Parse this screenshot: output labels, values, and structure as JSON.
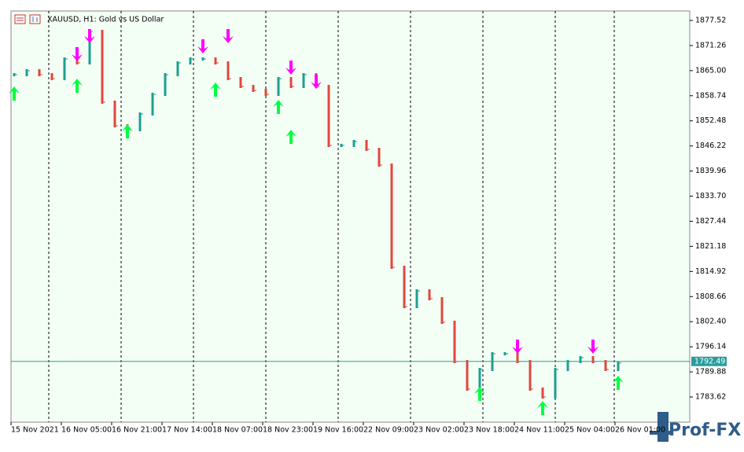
{
  "chart_data": {
    "type": "bars",
    "title": "XAUUSD, H1:  Gold vs US Dollar",
    "watermark": "Prof-FX",
    "series": [
      {
        "values": [
          1863.99,
          1864.97,
          1863.99,
          1863.01,
          1867.91,
          1866.93,
          1874.78,
          1857.13,
          1851.25,
          1850.27,
          1854.19,
          1859.09,
          1863.99,
          1866.93,
          1867.91,
          1867.91,
          1866.93,
          1863.01,
          1861.05,
          1860.07,
          1859.09,
          1863.01,
          1861.05,
          1863.99,
          1861.05,
          1846.35,
          1846.35,
          1847.33,
          1845.37,
          1841.45,
          1815.96,
          1806.16,
          1810.08,
          1808.12,
          1802.24,
          1792.44,
          1785.58,
          1790.48,
          1794.4,
          1794.4,
          1792.44,
          1785.58,
          1783.62,
          1790.48,
          1792.44,
          1793.42,
          1792.44,
          1790.48,
          1792.05
        ]
      }
    ],
    "up_color": "#1f9e8f",
    "down_color": "#e0473f",
    "buy_signals": {
      "color": "#00ff40",
      "values": [
        1861.05,
        null,
        null,
        null,
        null,
        1863.01,
        null,
        null,
        null,
        1851.64,
        null,
        null,
        null,
        null,
        null,
        null,
        1862.03,
        null,
        null,
        null,
        null,
        1857.72,
        1850.27,
        null,
        null,
        null,
        null,
        null,
        null,
        null,
        null,
        null,
        null,
        null,
        null,
        null,
        null,
        1786.17,
        null,
        null,
        null,
        null,
        1782.64,
        null,
        null,
        null,
        null,
        null,
        1788.91
      ]
    },
    "sell_signals": {
      "color": "#ff00ff",
      "values": [
        null,
        null,
        null,
        null,
        null,
        1867.33,
        1871.83,
        null,
        null,
        null,
        null,
        null,
        null,
        null,
        null,
        1869.29,
        null,
        1871.83,
        null,
        null,
        null,
        null,
        1863.99,
        null,
        1860.46,
        null,
        null,
        null,
        null,
        null,
        null,
        null,
        null,
        null,
        null,
        null,
        null,
        null,
        null,
        null,
        1794.4,
        null,
        null,
        null,
        null,
        null,
        1794.4,
        null,
        null
      ]
    },
    "x_labels": [
      "15 Nov 2021",
      "16 Nov 05:00",
      "16 Nov 21:00",
      "17 Nov 14:00",
      "18 Nov 07:00",
      "18 Nov 23:00",
      "19 Nov 16:00",
      "22 Nov 09:00",
      "23 Nov 02:00",
      "23 Nov 18:00",
      "24 Nov 11:00",
      "25 Nov 04:00",
      "26 Nov 01:00"
    ],
    "ylim": [
      1778.72,
      1879.87
    ],
    "yticks": [
      1877.52,
      1871.26,
      {
        "value": 1865,
        "label": "1865.00"
      },
      1858.74,
      1852.48,
      1846.22,
      1839.96,
      {
        "value": 1833.7,
        "label": "1833.70"
      },
      1827.44,
      1821.18,
      1814.92,
      1808.66,
      {
        "value": 1802.4,
        "label": "1802.40"
      },
      1796.14,
      1789.88,
      1783.62
    ],
    "current_price": 1792.49,
    "current_price_color": "#2a9d9d"
  }
}
